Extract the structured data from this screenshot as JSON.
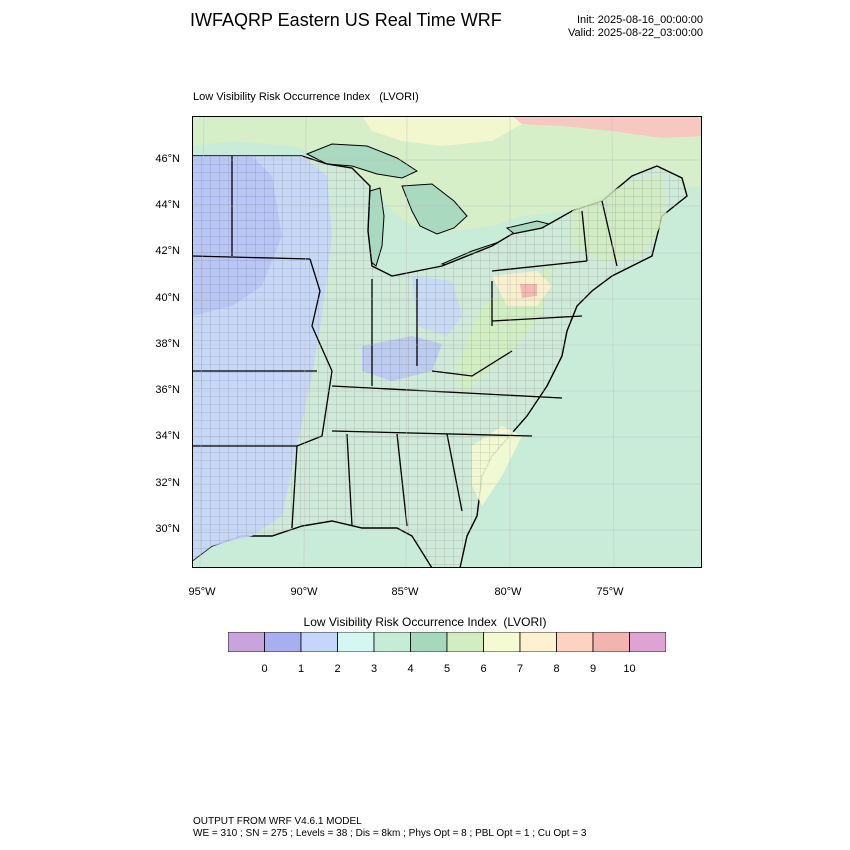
{
  "header": {
    "title": "IWFAQRP Eastern US Real Time WRF",
    "init": "Init: 2025-08-16_00:00:00",
    "valid": "Valid: 2025-08-22_03:00:00"
  },
  "map": {
    "title": "Low Visibility Risk Occurrence Index   (LVORI)",
    "lat_labels": [
      "46°N",
      "44°N",
      "42°N",
      "40°N",
      "38°N",
      "36°N",
      "34°N",
      "32°N",
      "30°N"
    ],
    "lon_labels": [
      "95°W",
      "90°W",
      "85°W",
      "80°W",
      "75°W"
    ]
  },
  "colorbar": {
    "title": "Low Visibility Risk Occurrence Index  (LVORI)",
    "colors": [
      "#c7a4dc",
      "#a8aef0",
      "#c5d6fb",
      "#d4f7f1",
      "#c5ecd7",
      "#a6d8bd",
      "#d2eec1",
      "#f4fbd2",
      "#fdf1cf",
      "#fdd2c0",
      "#f3b3ae",
      "#dea3d3"
    ],
    "labels": [
      "0",
      "1",
      "2",
      "3",
      "4",
      "5",
      "6",
      "7",
      "8",
      "9",
      "10"
    ]
  },
  "footer": {
    "line1": "OUTPUT FROM WRF V4.6.1 MODEL",
    "line2": "WE = 310 ; SN = 275 ; Levels = 38 ; Dis = 8km ; Phys Opt = 8 ; PBL Opt = 1 ; Cu Opt = 3"
  }
}
